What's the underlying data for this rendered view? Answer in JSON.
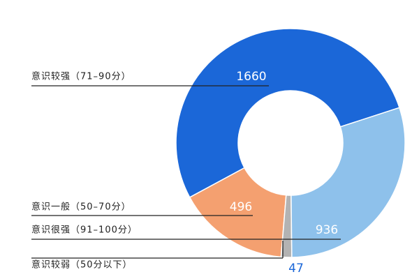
{
  "chart_data": {
    "type": "donut",
    "categories": [
      "意识较强（71–90分）",
      "意识一般（50–70分）",
      "意识较弱（50分以下）",
      "意识很强（91–100分）"
    ],
    "values": [
      1660,
      496,
      47,
      936
    ],
    "colors": [
      "#1b67d8",
      "#f4a070",
      "#b3b3b3",
      "#8ec1eb"
    ]
  }
}
